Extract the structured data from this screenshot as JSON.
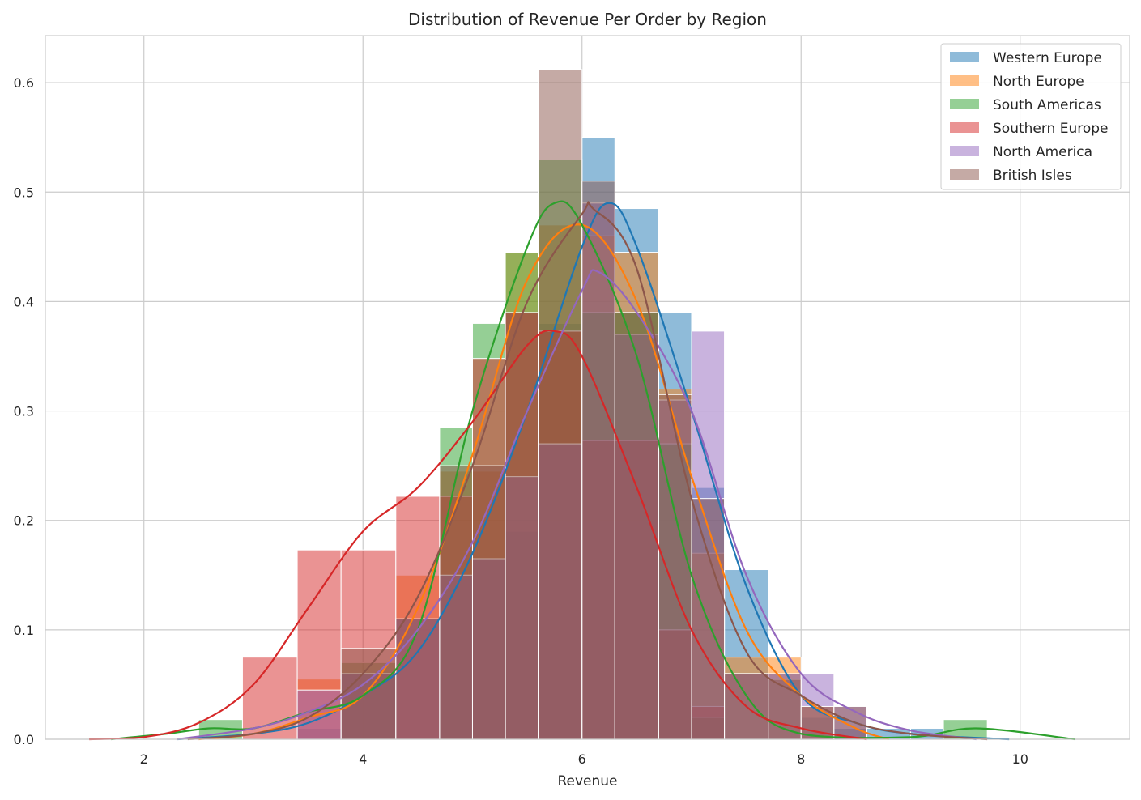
{
  "chart_data": {
    "type": "histogram",
    "title": "Distribution of Revenue Per Order by Region",
    "xlabel": "Revenue",
    "ylabel": "",
    "xlim": [
      1.1,
      11.0
    ],
    "ylim": [
      0,
      0.643
    ],
    "xticks": [
      2,
      4,
      6,
      8,
      10
    ],
    "yticks": [
      0.0,
      0.1,
      0.2,
      0.3,
      0.4,
      0.5,
      0.6
    ],
    "grid": true,
    "legend_position": "top-right",
    "series": [
      {
        "name": "Western Europe",
        "color": "#1f77b4",
        "bins": [
          [
            3.4,
            3.8,
            0.01
          ],
          [
            3.8,
            4.3,
            0.06
          ],
          [
            4.3,
            4.7,
            0.11
          ],
          [
            4.7,
            5.0,
            0.15
          ],
          [
            5.0,
            5.3,
            0.165
          ],
          [
            5.3,
            5.6,
            0.19
          ],
          [
            5.6,
            6.0,
            0.38
          ],
          [
            6.0,
            6.3,
            0.55
          ],
          [
            6.3,
            6.7,
            0.485
          ],
          [
            6.7,
            7.0,
            0.39
          ],
          [
            7.0,
            7.3,
            0.23
          ],
          [
            7.3,
            7.7,
            0.155
          ],
          [
            7.7,
            8.0,
            0.06
          ],
          [
            8.0,
            8.3,
            0.02
          ],
          [
            8.3,
            8.6,
            0.01
          ],
          [
            8.6,
            9.0,
            0.01
          ],
          [
            9.0,
            9.3,
            0.01
          ]
        ],
        "kde": [
          [
            2.3,
            0.0
          ],
          [
            3.0,
            0.005
          ],
          [
            3.5,
            0.015
          ],
          [
            4.0,
            0.04
          ],
          [
            4.5,
            0.08
          ],
          [
            5.0,
            0.17
          ],
          [
            5.5,
            0.3
          ],
          [
            6.0,
            0.45
          ],
          [
            6.25,
            0.49
          ],
          [
            6.5,
            0.45
          ],
          [
            7.0,
            0.3
          ],
          [
            7.5,
            0.14
          ],
          [
            8.0,
            0.04
          ],
          [
            8.5,
            0.015
          ],
          [
            9.0,
            0.005
          ],
          [
            9.9,
            0.0
          ]
        ]
      },
      {
        "name": "North Europe",
        "color": "#ff7f0e",
        "bins": [
          [
            3.4,
            3.8,
            0.055
          ],
          [
            3.8,
            4.3,
            0.06
          ],
          [
            4.3,
            4.7,
            0.15
          ],
          [
            4.7,
            5.0,
            0.245
          ],
          [
            5.0,
            5.3,
            0.245
          ],
          [
            5.3,
            5.6,
            0.445
          ],
          [
            5.6,
            6.0,
            0.47
          ],
          [
            6.0,
            6.3,
            0.46
          ],
          [
            6.3,
            6.7,
            0.445
          ],
          [
            6.7,
            7.0,
            0.32
          ],
          [
            7.0,
            7.3,
            0.17
          ],
          [
            7.3,
            7.7,
            0.075
          ],
          [
            7.7,
            8.0,
            0.075
          ],
          [
            8.0,
            8.3,
            0.03
          ]
        ],
        "kde": [
          [
            2.5,
            0.0
          ],
          [
            3.0,
            0.005
          ],
          [
            3.5,
            0.02
          ],
          [
            4.0,
            0.04
          ],
          [
            4.5,
            0.12
          ],
          [
            5.0,
            0.26
          ],
          [
            5.5,
            0.42
          ],
          [
            6.0,
            0.47
          ],
          [
            6.5,
            0.4
          ],
          [
            7.0,
            0.24
          ],
          [
            7.5,
            0.1
          ],
          [
            8.0,
            0.04
          ],
          [
            8.5,
            0.01
          ],
          [
            8.8,
            0.0
          ]
        ]
      },
      {
        "name": "South Americas",
        "color": "#2ca02c",
        "bins": [
          [
            2.5,
            2.9,
            0.018
          ],
          [
            3.8,
            4.3,
            0.07
          ],
          [
            4.7,
            5.0,
            0.285
          ],
          [
            5.0,
            5.3,
            0.38
          ],
          [
            5.3,
            5.6,
            0.445
          ],
          [
            5.6,
            6.0,
            0.53
          ],
          [
            6.0,
            6.3,
            0.39
          ],
          [
            6.3,
            6.7,
            0.39
          ],
          [
            6.7,
            7.0,
            0.27
          ],
          [
            7.0,
            7.3,
            0.02
          ],
          [
            9.3,
            9.7,
            0.018
          ]
        ],
        "kde": [
          [
            1.7,
            0.0
          ],
          [
            2.2,
            0.005
          ],
          [
            2.6,
            0.01
          ],
          [
            3.0,
            0.01
          ],
          [
            3.5,
            0.025
          ],
          [
            4.0,
            0.04
          ],
          [
            4.5,
            0.1
          ],
          [
            5.0,
            0.3
          ],
          [
            5.5,
            0.45
          ],
          [
            5.75,
            0.49
          ],
          [
            6.0,
            0.47
          ],
          [
            6.5,
            0.35
          ],
          [
            7.0,
            0.15
          ],
          [
            7.5,
            0.04
          ],
          [
            8.0,
            0.005
          ],
          [
            9.0,
            0.002
          ],
          [
            9.6,
            0.01
          ],
          [
            10.5,
            0.0
          ]
        ]
      },
      {
        "name": "Southern Europe",
        "color": "#d62728",
        "bins": [
          [
            2.9,
            3.4,
            0.075
          ],
          [
            3.4,
            3.8,
            0.173
          ],
          [
            3.8,
            4.3,
            0.173
          ],
          [
            4.3,
            4.7,
            0.222
          ],
          [
            4.7,
            5.0,
            0.222
          ],
          [
            5.0,
            5.3,
            0.348
          ],
          [
            5.3,
            5.6,
            0.39
          ],
          [
            5.6,
            6.0,
            0.373
          ],
          [
            6.0,
            6.3,
            0.273
          ],
          [
            6.3,
            6.7,
            0.273
          ],
          [
            6.7,
            7.0,
            0.1
          ],
          [
            7.0,
            7.3,
            0.03
          ]
        ],
        "kde": [
          [
            1.5,
            0.0
          ],
          [
            2.0,
            0.002
          ],
          [
            2.5,
            0.015
          ],
          [
            3.0,
            0.05
          ],
          [
            3.5,
            0.12
          ],
          [
            4.0,
            0.19
          ],
          [
            4.5,
            0.23
          ],
          [
            5.0,
            0.29
          ],
          [
            5.5,
            0.36
          ],
          [
            5.75,
            0.373
          ],
          [
            6.0,
            0.35
          ],
          [
            6.5,
            0.23
          ],
          [
            7.0,
            0.1
          ],
          [
            7.5,
            0.03
          ],
          [
            8.0,
            0.01
          ],
          [
            8.6,
            0.0
          ]
        ]
      },
      {
        "name": "North America",
        "color": "#9467bd",
        "bins": [
          [
            3.4,
            3.8,
            0.045
          ],
          [
            3.8,
            4.3,
            0.06
          ],
          [
            4.3,
            4.7,
            0.11
          ],
          [
            4.7,
            5.0,
            0.15
          ],
          [
            5.0,
            5.3,
            0.165
          ],
          [
            5.3,
            5.6,
            0.24
          ],
          [
            5.6,
            6.0,
            0.27
          ],
          [
            6.0,
            6.3,
            0.49
          ],
          [
            6.3,
            6.7,
            0.37
          ],
          [
            6.7,
            7.0,
            0.31
          ],
          [
            7.0,
            7.3,
            0.373
          ],
          [
            7.3,
            7.7,
            0.06
          ],
          [
            7.7,
            8.0,
            0.06
          ],
          [
            8.0,
            8.3,
            0.06
          ],
          [
            8.3,
            8.6,
            0.03
          ]
        ],
        "kde": [
          [
            2.3,
            0.0
          ],
          [
            3.0,
            0.01
          ],
          [
            3.5,
            0.025
          ],
          [
            4.0,
            0.05
          ],
          [
            4.5,
            0.1
          ],
          [
            5.0,
            0.18
          ],
          [
            5.5,
            0.3
          ],
          [
            6.0,
            0.41
          ],
          [
            6.15,
            0.427
          ],
          [
            6.5,
            0.39
          ],
          [
            7.0,
            0.3
          ],
          [
            7.5,
            0.15
          ],
          [
            8.0,
            0.06
          ],
          [
            8.5,
            0.025
          ],
          [
            9.0,
            0.008
          ],
          [
            9.6,
            0.0
          ]
        ]
      },
      {
        "name": "British Isles",
        "color": "#8c564b",
        "bins": [
          [
            3.8,
            4.3,
            0.083
          ],
          [
            4.3,
            4.7,
            0.11
          ],
          [
            4.7,
            5.0,
            0.25
          ],
          [
            5.0,
            5.3,
            0.25
          ],
          [
            5.3,
            5.6,
            0.39
          ],
          [
            5.6,
            6.0,
            0.612
          ],
          [
            6.0,
            6.3,
            0.51
          ],
          [
            6.3,
            6.7,
            0.39
          ],
          [
            6.7,
            7.0,
            0.315
          ],
          [
            7.0,
            7.3,
            0.22
          ],
          [
            7.3,
            7.7,
            0.06
          ],
          [
            7.7,
            8.0,
            0.055
          ],
          [
            8.0,
            8.3,
            0.03
          ],
          [
            8.3,
            8.6,
            0.03
          ]
        ],
        "kde": [
          [
            2.4,
            0.0
          ],
          [
            3.0,
            0.005
          ],
          [
            3.5,
            0.02
          ],
          [
            4.0,
            0.06
          ],
          [
            4.5,
            0.13
          ],
          [
            5.0,
            0.25
          ],
          [
            5.5,
            0.4
          ],
          [
            6.0,
            0.48
          ],
          [
            6.1,
            0.485
          ],
          [
            6.5,
            0.43
          ],
          [
            7.0,
            0.22
          ],
          [
            7.5,
            0.08
          ],
          [
            8.0,
            0.04
          ],
          [
            8.5,
            0.015
          ],
          [
            9.0,
            0.005
          ],
          [
            9.7,
            0.0
          ]
        ]
      }
    ]
  }
}
